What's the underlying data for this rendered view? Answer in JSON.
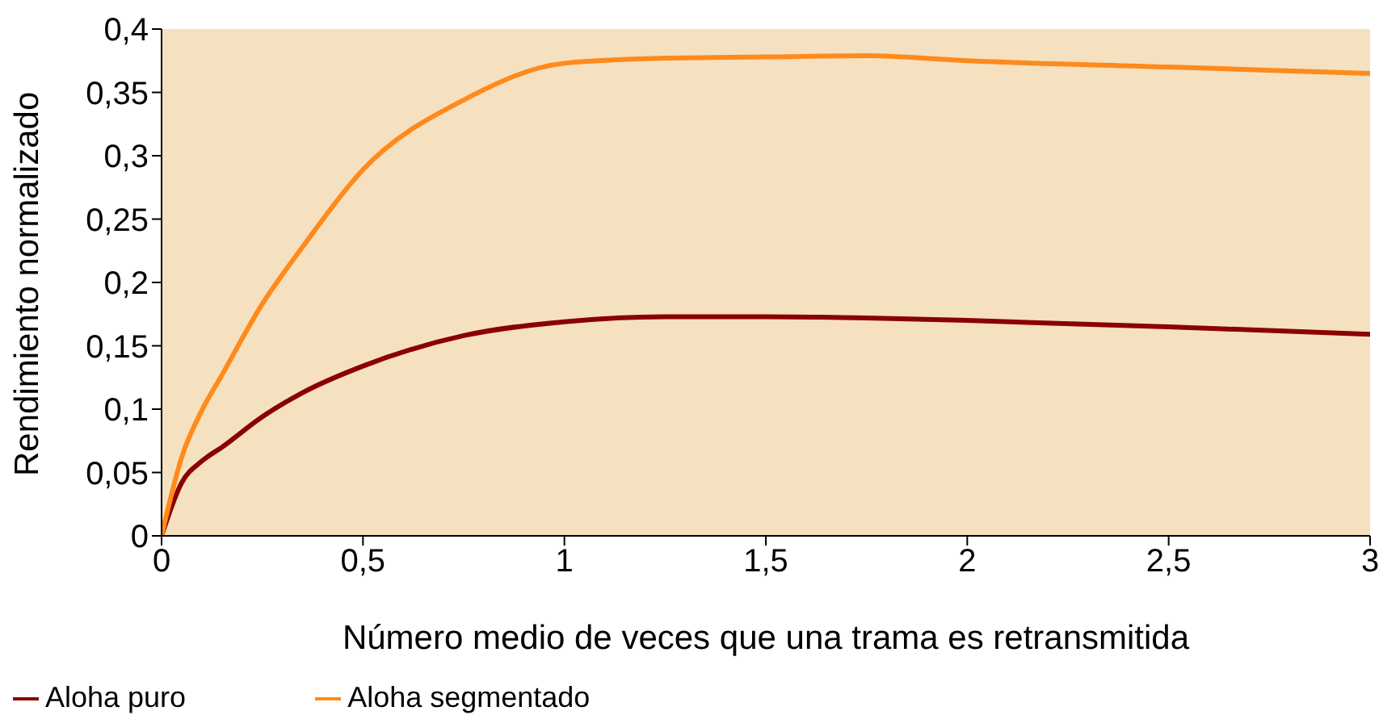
{
  "chart_data": {
    "type": "line",
    "xlabel": "Número medio de veces que una trama es retransmitida",
    "ylabel": "Rendimiento normalizado",
    "x": [
      0,
      0.05,
      0.1,
      0.15,
      0.25,
      0.35,
      0.5,
      0.75,
      1,
      1.25,
      1.5,
      1.75,
      2,
      2.5,
      3
    ],
    "series": [
      {
        "name": "Aloha puro",
        "color": "#8b0000",
        "values": [
          0,
          0.042,
          0.059,
          0.07,
          0.094,
          0.113,
          0.134,
          0.158,
          0.169,
          0.173,
          0.173,
          0.172,
          0.17,
          0.165,
          0.159
        ]
      },
      {
        "name": "Aloha segmentado",
        "color": "#ff8a1c",
        "values": [
          0,
          0.062,
          0.099,
          0.127,
          0.183,
          0.228,
          0.289,
          0.344,
          0.373,
          0.377,
          0.378,
          0.379,
          0.375,
          0.37,
          0.365
        ]
      }
    ],
    "xlim": [
      0,
      3
    ],
    "xticks": [
      0,
      {
        "value": 0.5,
        "label": "0,5"
      },
      1,
      {
        "value": 1.5,
        "label": "1,5"
      },
      2,
      {
        "value": 2.5,
        "label": "2,5"
      },
      3
    ],
    "ylim": [
      0,
      0.4
    ],
    "yticks": [
      0,
      {
        "value": 0.05,
        "label": "0,05"
      },
      {
        "value": 0.1,
        "label": "0,1"
      },
      {
        "value": 0.15,
        "label": "0,15"
      },
      {
        "value": 0.2,
        "label": "0,2"
      },
      {
        "value": 0.25,
        "label": "0,25"
      },
      {
        "value": 0.3,
        "label": "0,3"
      },
      {
        "value": 0.35,
        "label": "0,35"
      },
      {
        "value": 0.4,
        "label": "0,4"
      }
    ],
    "grid": false,
    "legend": "bottom left",
    "marker": "none",
    "line_style": "solid"
  }
}
